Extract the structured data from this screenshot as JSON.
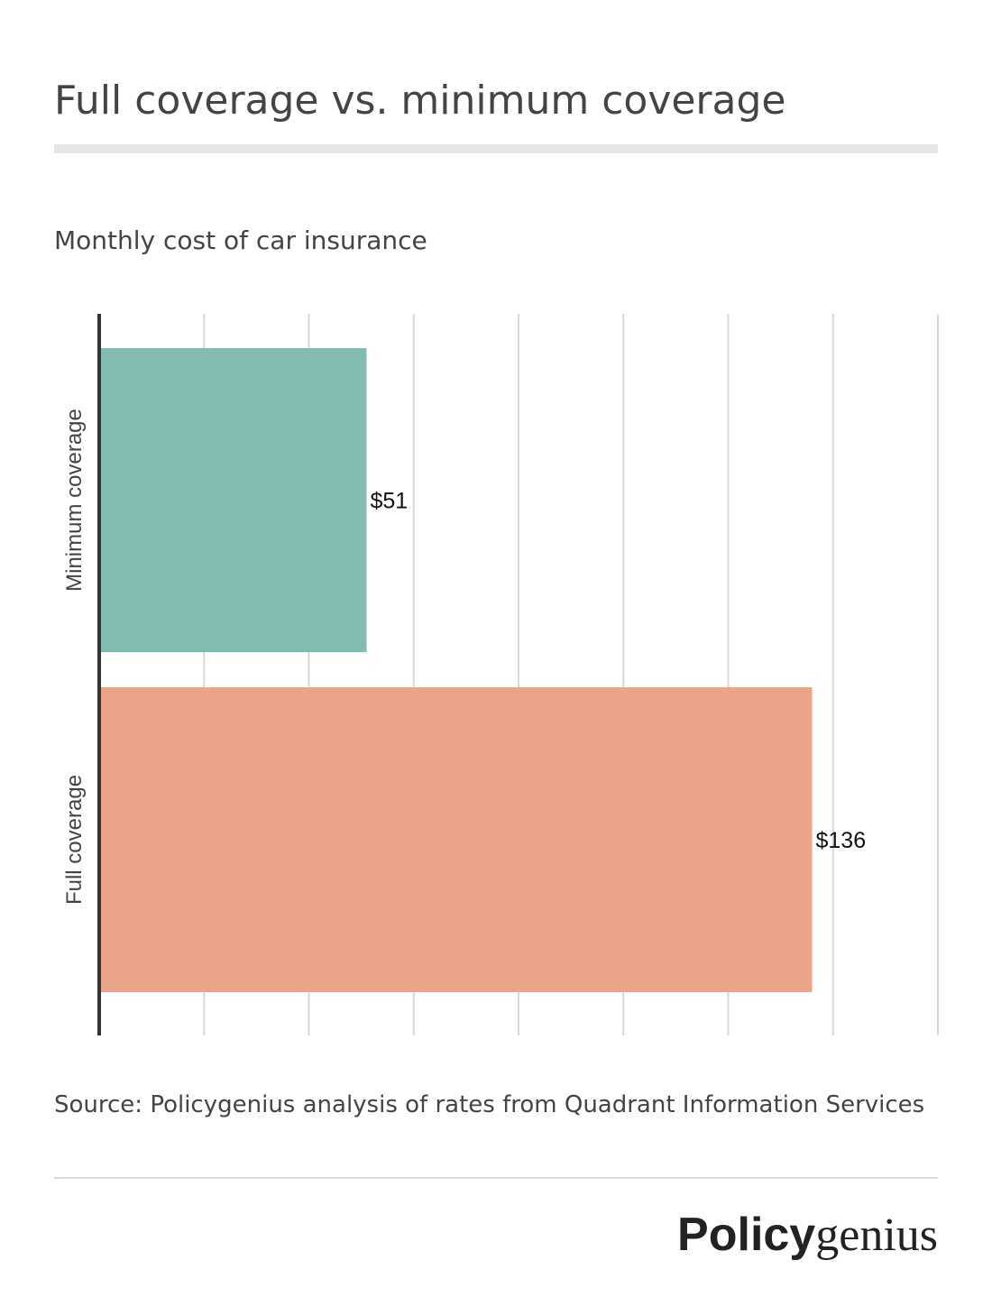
{
  "header": {
    "title": "Full coverage vs. minimum coverage"
  },
  "chart_data": {
    "type": "bar",
    "orientation": "horizontal",
    "title": "Full coverage vs. minimum coverage",
    "subtitle": "Monthly cost of car insurance",
    "categories": [
      "Minimum coverage",
      "Full coverage"
    ],
    "values": [
      51,
      136
    ],
    "value_labels": [
      "$51",
      "$136"
    ],
    "colors": [
      "#83bbb0",
      "#eca489"
    ],
    "xlim": [
      0,
      160
    ],
    "x_gridlines": [
      20,
      40,
      60,
      80,
      100,
      120,
      140,
      160
    ],
    "xlabel": "",
    "ylabel": "",
    "grid": true,
    "legend": "none"
  },
  "footer": {
    "source": "Source: Policygenius analysis of rates from Quadrant Information Services",
    "brand_bold": "Policy",
    "brand_light": "genius"
  }
}
